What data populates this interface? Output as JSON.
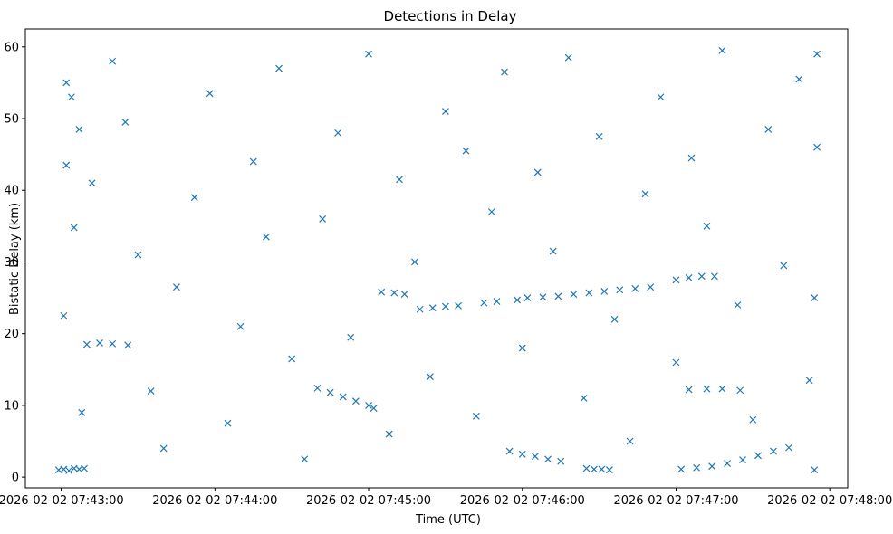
{
  "chart_data": {
    "type": "scatter",
    "title": "Detections in Delay",
    "xlabel": "Time (UTC)",
    "ylabel": "Bistatic Delay (km)",
    "x_format": "datetime",
    "x_tick_labels": [
      "2026-02-02 07:43:00",
      "2026-02-02 07:44:00",
      "2026-02-02 07:45:00",
      "2026-02-02 07:46:00",
      "2026-02-02 07:47:00",
      "2026-02-02 07:48:00"
    ],
    "xlim": [
      "2026-02-02 07:42:46",
      "2026-02-02 07:48:07"
    ],
    "y_ticks": [
      0,
      10,
      20,
      30,
      40,
      50,
      60
    ],
    "ylim": [
      -1.5,
      62.5
    ],
    "grid": false,
    "marker": "x",
    "color": "#1f77b4",
    "series": [
      {
        "points": [
          [
            "2026-02-02 07:42:59",
            1.0
          ],
          [
            "2026-02-02 07:43:01",
            1.1
          ],
          [
            "2026-02-02 07:43:03",
            0.9
          ],
          [
            "2026-02-02 07:43:05",
            1.2
          ],
          [
            "2026-02-02 07:43:07",
            1.1
          ],
          [
            "2026-02-02 07:43:09",
            1.2
          ],
          [
            "2026-02-02 07:45:00",
            10.0
          ],
          [
            "2026-02-02 07:45:02",
            9.6
          ],
          [
            "2026-02-02 07:44:40",
            12.4
          ],
          [
            "2026-02-02 07:44:45",
            11.8
          ],
          [
            "2026-02-02 07:44:50",
            11.2
          ],
          [
            "2026-02-02 07:44:55",
            10.6
          ],
          [
            "2026-02-02 07:45:05",
            25.8
          ],
          [
            "2026-02-02 07:45:10",
            25.7
          ],
          [
            "2026-02-02 07:45:14",
            25.5
          ],
          [
            "2026-02-02 07:45:20",
            23.4
          ],
          [
            "2026-02-02 07:45:25",
            23.6
          ],
          [
            "2026-02-02 07:45:30",
            23.8
          ],
          [
            "2026-02-02 07:45:35",
            23.9
          ],
          [
            "2026-02-02 07:45:45",
            24.3
          ],
          [
            "2026-02-02 07:45:50",
            24.5
          ],
          [
            "2026-02-02 07:45:58",
            24.7
          ],
          [
            "2026-02-02 07:46:02",
            25.0
          ],
          [
            "2026-02-02 07:46:08",
            25.1
          ],
          [
            "2026-02-02 07:46:14",
            25.2
          ],
          [
            "2026-02-02 07:46:20",
            25.5
          ],
          [
            "2026-02-02 07:46:26",
            25.7
          ],
          [
            "2026-02-02 07:46:32",
            25.9
          ],
          [
            "2026-02-02 07:46:38",
            26.1
          ],
          [
            "2026-02-02 07:46:44",
            26.3
          ],
          [
            "2026-02-02 07:46:50",
            26.5
          ],
          [
            "2026-02-02 07:47:00",
            27.5
          ],
          [
            "2026-02-02 07:47:05",
            27.8
          ],
          [
            "2026-02-02 07:47:10",
            28.0
          ],
          [
            "2026-02-02 07:47:15",
            28.0
          ],
          [
            "2026-02-02 07:45:55",
            3.6
          ],
          [
            "2026-02-02 07:46:00",
            3.2
          ],
          [
            "2026-02-02 07:46:05",
            2.9
          ],
          [
            "2026-02-02 07:46:10",
            2.5
          ],
          [
            "2026-02-02 07:46:15",
            2.2
          ],
          [
            "2026-02-02 07:46:25",
            1.2
          ],
          [
            "2026-02-02 07:46:28",
            1.1
          ],
          [
            "2026-02-02 07:46:31",
            1.1
          ],
          [
            "2026-02-02 07:46:34",
            1.0
          ],
          [
            "2026-02-02 07:47:02",
            1.1
          ],
          [
            "2026-02-02 07:47:08",
            1.3
          ],
          [
            "2026-02-02 07:47:14",
            1.5
          ],
          [
            "2026-02-02 07:47:20",
            1.9
          ],
          [
            "2026-02-02 07:47:26",
            2.4
          ],
          [
            "2026-02-02 07:47:32",
            3.0
          ],
          [
            "2026-02-02 07:47:38",
            3.6
          ],
          [
            "2026-02-02 07:47:44",
            4.1
          ],
          [
            "2026-02-02 07:47:05",
            12.2
          ],
          [
            "2026-02-02 07:47:12",
            12.3
          ],
          [
            "2026-02-02 07:47:18",
            12.3
          ],
          [
            "2026-02-02 07:47:25",
            12.1
          ],
          [
            "2026-02-02 07:43:10",
            18.5
          ],
          [
            "2026-02-02 07:43:15",
            18.7
          ],
          [
            "2026-02-02 07:43:20",
            18.6
          ],
          [
            "2026-02-02 07:43:26",
            18.4
          ],
          [
            "2026-02-02 07:43:02",
            55.0
          ],
          [
            "2026-02-02 07:43:04",
            53.0
          ],
          [
            "2026-02-02 07:43:07",
            48.5
          ],
          [
            "2026-02-02 07:43:02",
            43.5
          ],
          [
            "2026-02-02 07:43:05",
            34.8
          ],
          [
            "2026-02-02 07:43:01",
            22.5
          ],
          [
            "2026-02-02 07:43:08",
            9.0
          ],
          [
            "2026-02-02 07:43:12",
            41.0
          ],
          [
            "2026-02-02 07:43:20",
            58.0
          ],
          [
            "2026-02-02 07:43:25",
            49.5
          ],
          [
            "2026-02-02 07:43:30",
            31.0
          ],
          [
            "2026-02-02 07:43:35",
            12.0
          ],
          [
            "2026-02-02 07:43:40",
            4.0
          ],
          [
            "2026-02-02 07:43:45",
            26.5
          ],
          [
            "2026-02-02 07:43:52",
            39.0
          ],
          [
            "2026-02-02 07:43:58",
            53.5
          ],
          [
            "2026-02-02 07:44:05",
            7.5
          ],
          [
            "2026-02-02 07:44:10",
            21.0
          ],
          [
            "2026-02-02 07:44:15",
            44.0
          ],
          [
            "2026-02-02 07:44:20",
            33.5
          ],
          [
            "2026-02-02 07:44:25",
            57.0
          ],
          [
            "2026-02-02 07:44:30",
            16.5
          ],
          [
            "2026-02-02 07:44:35",
            2.5
          ],
          [
            "2026-02-02 07:44:42",
            36.0
          ],
          [
            "2026-02-02 07:44:48",
            48.0
          ],
          [
            "2026-02-02 07:44:53",
            19.5
          ],
          [
            "2026-02-02 07:45:00",
            59.0
          ],
          [
            "2026-02-02 07:45:08",
            6.0
          ],
          [
            "2026-02-02 07:45:12",
            41.5
          ],
          [
            "2026-02-02 07:45:18",
            30.0
          ],
          [
            "2026-02-02 07:45:24",
            14.0
          ],
          [
            "2026-02-02 07:45:30",
            51.0
          ],
          [
            "2026-02-02 07:45:38",
            45.5
          ],
          [
            "2026-02-02 07:45:42",
            8.5
          ],
          [
            "2026-02-02 07:45:48",
            37.0
          ],
          [
            "2026-02-02 07:45:53",
            56.5
          ],
          [
            "2026-02-02 07:46:00",
            18.0
          ],
          [
            "2026-02-02 07:46:06",
            42.5
          ],
          [
            "2026-02-02 07:46:12",
            31.5
          ],
          [
            "2026-02-02 07:46:18",
            58.5
          ],
          [
            "2026-02-02 07:46:24",
            11.0
          ],
          [
            "2026-02-02 07:46:30",
            47.5
          ],
          [
            "2026-02-02 07:46:36",
            22.0
          ],
          [
            "2026-02-02 07:46:42",
            5.0
          ],
          [
            "2026-02-02 07:46:48",
            39.5
          ],
          [
            "2026-02-02 07:46:54",
            53.0
          ],
          [
            "2026-02-02 07:47:00",
            16.0
          ],
          [
            "2026-02-02 07:47:06",
            44.5
          ],
          [
            "2026-02-02 07:47:12",
            35.0
          ],
          [
            "2026-02-02 07:47:18",
            59.5
          ],
          [
            "2026-02-02 07:47:24",
            24.0
          ],
          [
            "2026-02-02 07:47:30",
            8.0
          ],
          [
            "2026-02-02 07:47:36",
            48.5
          ],
          [
            "2026-02-02 07:47:42",
            29.5
          ],
          [
            "2026-02-02 07:47:48",
            55.5
          ],
          [
            "2026-02-02 07:47:52",
            13.5
          ],
          [
            "2026-02-02 07:47:54",
            1.0
          ],
          [
            "2026-02-02 07:47:55",
            59.0
          ],
          [
            "2026-02-02 07:47:55",
            46.0
          ],
          [
            "2026-02-02 07:47:54",
            25.0
          ]
        ]
      }
    ]
  }
}
